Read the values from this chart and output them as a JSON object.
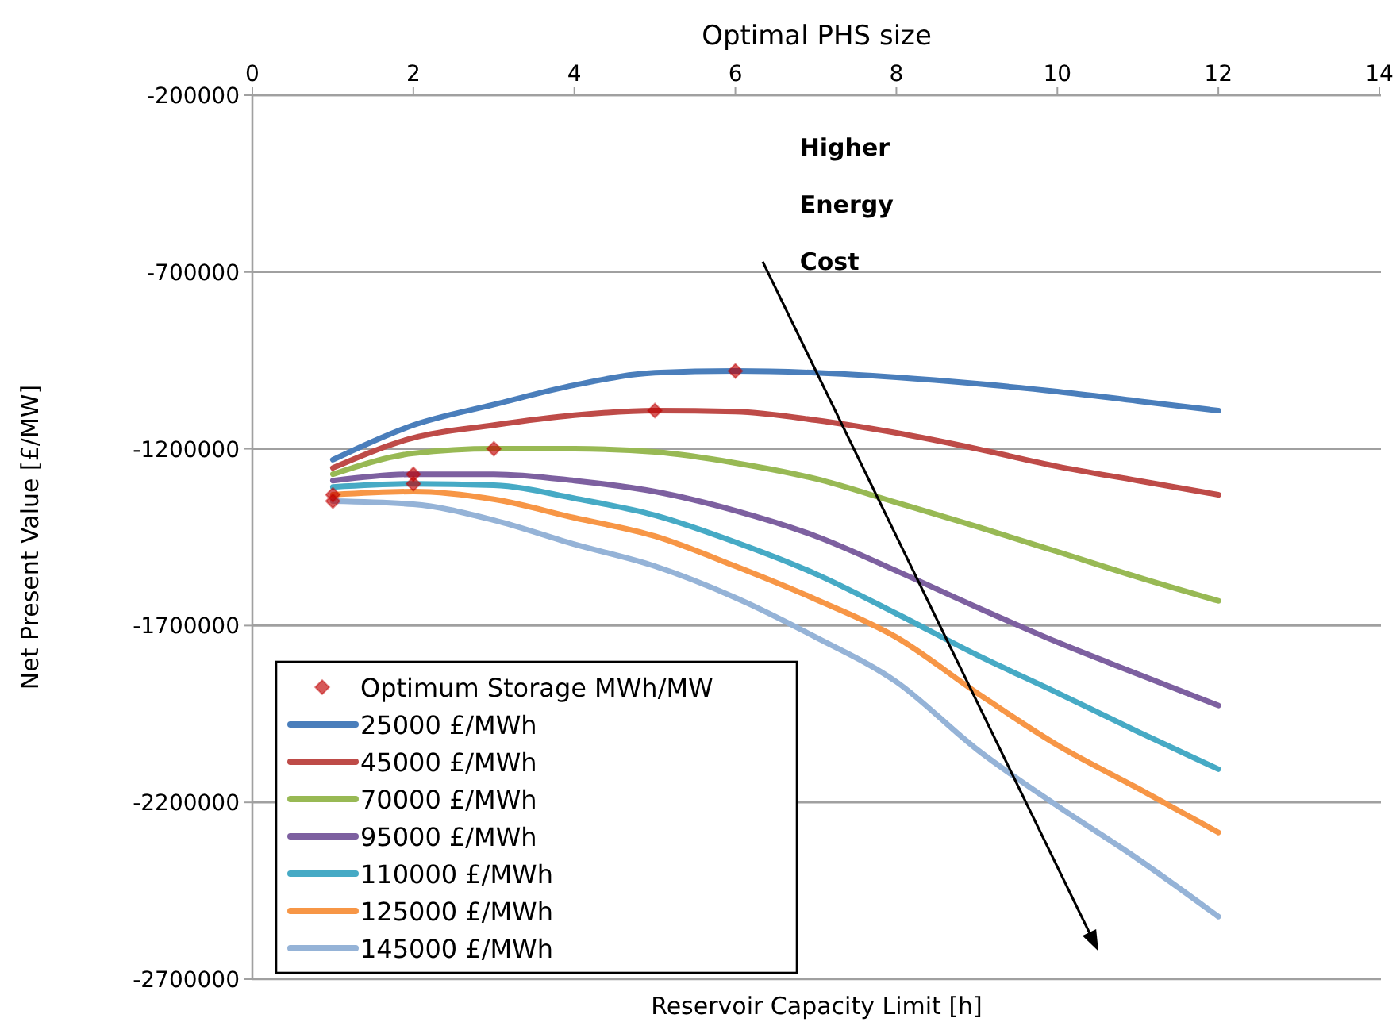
{
  "chart_data": {
    "type": "line",
    "title": "Optimal PHS size",
    "xlabel": "Reservoir Capacity Limit [h]",
    "ylabel": "Net Present Value [£/MW]",
    "xlim": [
      0,
      14
    ],
    "xticks": [
      0,
      2,
      4,
      6,
      8,
      10,
      12,
      14
    ],
    "ylim": [
      -2700000,
      -200000
    ],
    "yticks": [
      -2700000,
      -2200000,
      -1700000,
      -1200000,
      -700000,
      -200000
    ],
    "grid": "y",
    "legend": "bottom left",
    "marker": "none",
    "line_style": "solid",
    "x": [
      1,
      2,
      3,
      4,
      5,
      6,
      7,
      8,
      9,
      10,
      11,
      12
    ],
    "series": [
      {
        "name": "Optimum Storage MWh/MW",
        "type": "scatter",
        "marker": "diamond",
        "color": "#c00000",
        "x": [
          1,
          1,
          2,
          2,
          3,
          5,
          6
        ],
        "values": [
          -1330000,
          -1348000,
          -1272000,
          -1299000,
          -1200000,
          -1092000,
          -980000
        ]
      },
      {
        "name": "25000 £/MWh",
        "color": "#4a7ebb",
        "values": [
          -1231000,
          -1133000,
          -1075000,
          -1020000,
          -985000,
          -980000,
          -985000,
          -998000,
          -1016000,
          -1038000,
          -1065000,
          -1092000
        ]
      },
      {
        "name": "45000 £/MWh",
        "color": "#be4b48",
        "values": [
          -1254000,
          -1169000,
          -1133000,
          -1105000,
          -1092000,
          -1095000,
          -1119000,
          -1155000,
          -1200000,
          -1250000,
          -1290000,
          -1330000
        ]
      },
      {
        "name": "70000 £/MWh",
        "color": "#98b954",
        "values": [
          -1272000,
          -1213000,
          -1200000,
          -1200000,
          -1209000,
          -1240000,
          -1285000,
          -1352000,
          -1420000,
          -1491000,
          -1563000,
          -1630000
        ]
      },
      {
        "name": "95000 £/MWh",
        "color": "#7d60a0",
        "values": [
          -1290000,
          -1272000,
          -1272000,
          -1290000,
          -1321000,
          -1375000,
          -1447000,
          -1545000,
          -1648000,
          -1747000,
          -1837000,
          -1926000
        ]
      },
      {
        "name": "110000 £/MWh",
        "color": "#46aac5",
        "values": [
          -1308000,
          -1299000,
          -1303000,
          -1340000,
          -1388000,
          -1464000,
          -1554000,
          -1666000,
          -1783000,
          -1890000,
          -2000000,
          -2106000
        ]
      },
      {
        "name": "125000 £/MWh",
        "color": "#f79646",
        "values": [
          -1330000,
          -1321000,
          -1343000,
          -1395000,
          -1447000,
          -1532000,
          -1626000,
          -1733000,
          -1890000,
          -2038000,
          -2160000,
          -2285000
        ]
      },
      {
        "name": "145000 £/MWh",
        "color": "#95b3d7",
        "values": [
          -1348000,
          -1357000,
          -1402000,
          -1470000,
          -1532000,
          -1621000,
          -1733000,
          -1859000,
          -2050000,
          -2210000,
          -2360000,
          -2523000
        ]
      }
    ],
    "annotations": [
      "Higher Energy Cost"
    ]
  }
}
